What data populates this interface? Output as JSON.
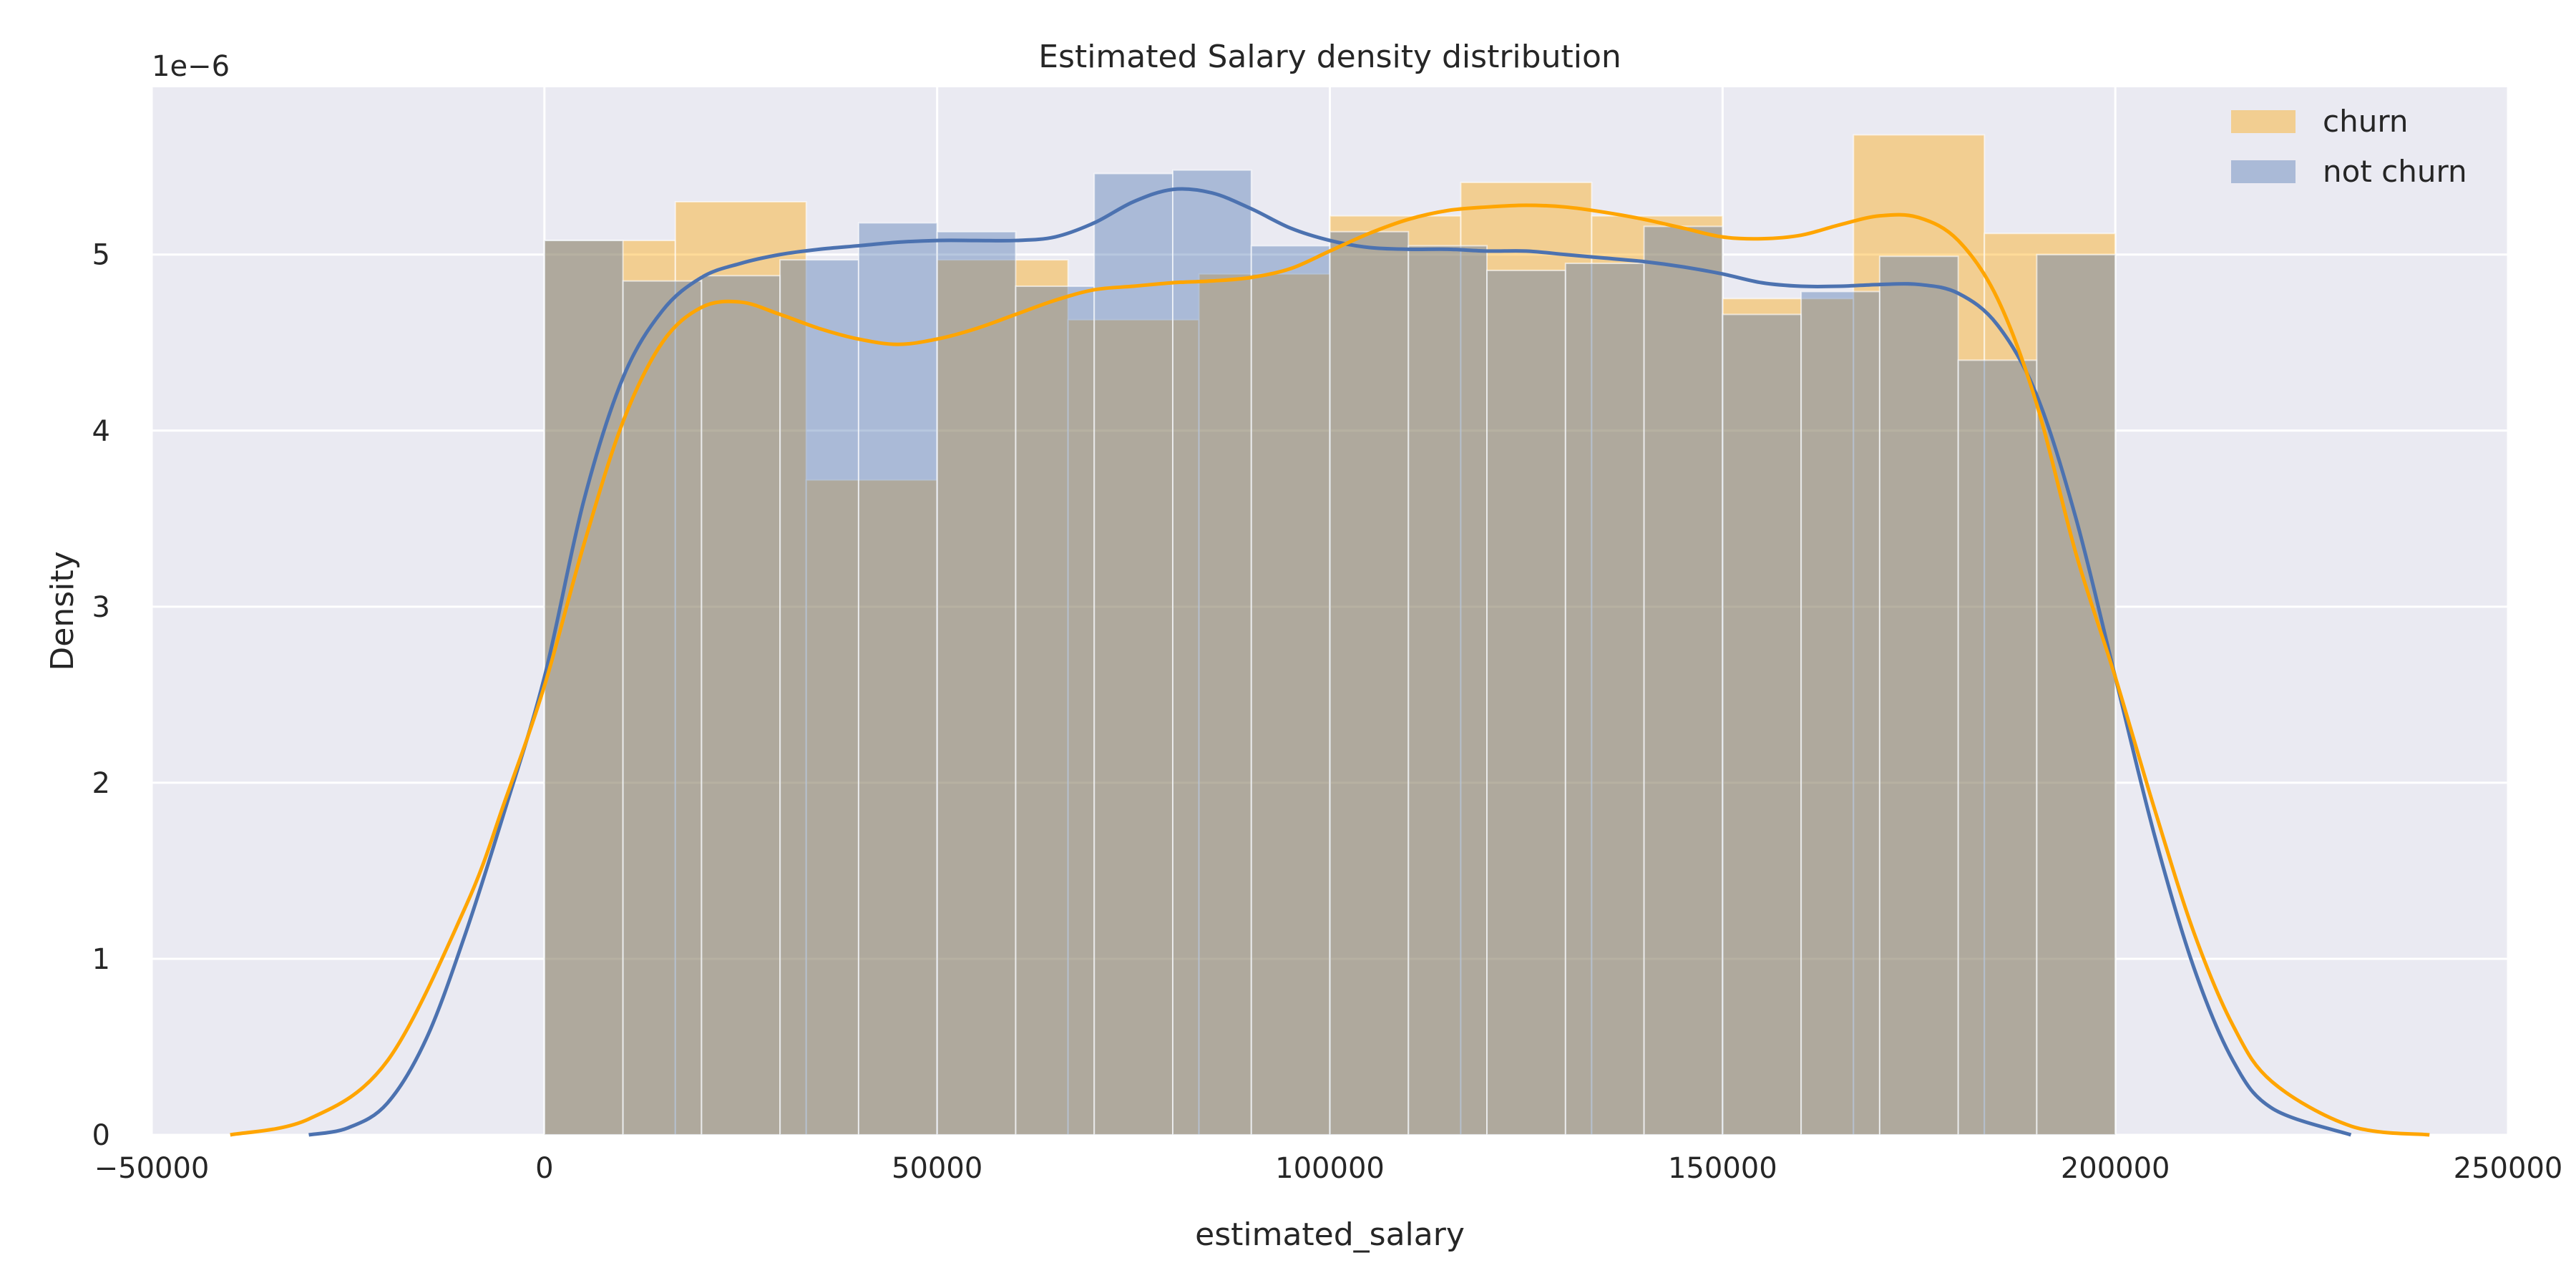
{
  "chart_data": {
    "type": "histogram-kde",
    "title": "Estimated Salary density distribution",
    "xlabel": "estimated_salary",
    "ylabel": "Density",
    "y_multiplier_label": "1e−6",
    "xlim": [
      -50000,
      250000
    ],
    "ylim": [
      0,
      5.95
    ],
    "x_ticks": [
      -50000,
      0,
      50000,
      100000,
      150000,
      200000,
      250000
    ],
    "x_tick_labels": [
      "−50000",
      "0",
      "50000",
      "100000",
      "150000",
      "200000",
      "250000"
    ],
    "y_ticks": [
      0,
      1,
      2,
      3,
      4,
      5
    ],
    "y_tick_labels": [
      "0",
      "1",
      "2",
      "3",
      "4",
      "5"
    ],
    "grid": true,
    "legend_position": "top-right",
    "series": [
      {
        "name": "churn",
        "color": "#FFA500",
        "bar_fill": "#F5D08E",
        "bin_edges": [
          0,
          16667,
          33333,
          50000,
          66667,
          83333,
          100000,
          116667,
          133333,
          150000,
          166667,
          183333,
          200000
        ],
        "densities": [
          5.08,
          5.3,
          3.72,
          4.97,
          4.63,
          4.89,
          5.22,
          5.41,
          5.22,
          4.75,
          5.68,
          5.12
        ],
        "kde_x": [
          -40000,
          -30000,
          -20000,
          -10000,
          -5000,
          0,
          5000,
          10000,
          15000,
          20000,
          25000,
          30000,
          35000,
          40000,
          45000,
          50000,
          55000,
          60000,
          65000,
          70000,
          75000,
          80000,
          85000,
          90000,
          95000,
          100000,
          105000,
          110000,
          115000,
          120000,
          125000,
          130000,
          135000,
          140000,
          145000,
          150000,
          155000,
          160000,
          165000,
          170000,
          175000,
          180000,
          185000,
          190000,
          195000,
          200000,
          205000,
          210000,
          215000,
          220000,
          230000,
          240000
        ],
        "kde_y": [
          0.0,
          0.09,
          0.42,
          1.3,
          1.9,
          2.55,
          3.35,
          4.05,
          4.5,
          4.7,
          4.73,
          4.66,
          4.58,
          4.52,
          4.49,
          4.52,
          4.58,
          4.66,
          4.74,
          4.8,
          4.82,
          4.84,
          4.85,
          4.87,
          4.92,
          5.02,
          5.12,
          5.2,
          5.25,
          5.27,
          5.28,
          5.27,
          5.24,
          5.2,
          5.15,
          5.1,
          5.09,
          5.11,
          5.17,
          5.22,
          5.21,
          5.08,
          4.75,
          4.15,
          3.3,
          2.6,
          1.85,
          1.15,
          0.62,
          0.3,
          0.05,
          0.0
        ]
      },
      {
        "name": "not churn",
        "color": "#4C72B0",
        "bar_fill": "#A8B8D8",
        "bin_edges": [
          0,
          10000,
          20000,
          30000,
          40000,
          50000,
          60000,
          70000,
          80000,
          90000,
          100000,
          110000,
          120000,
          130000,
          140000,
          150000,
          160000,
          170000,
          180000,
          190000,
          200000
        ],
        "densities": [
          5.08,
          4.85,
          4.88,
          4.97,
          5.18,
          5.13,
          4.82,
          5.46,
          5.48,
          5.05,
          5.13,
          5.05,
          4.91,
          4.95,
          5.16,
          4.66,
          4.79,
          4.99,
          4.4,
          5.0
        ],
        "kde_x": [
          -30000,
          -25000,
          -20000,
          -15000,
          -10000,
          -5000,
          0,
          5000,
          10000,
          15000,
          20000,
          25000,
          30000,
          35000,
          40000,
          45000,
          50000,
          55000,
          60000,
          65000,
          70000,
          75000,
          80000,
          85000,
          90000,
          95000,
          100000,
          105000,
          110000,
          115000,
          120000,
          125000,
          130000,
          135000,
          140000,
          145000,
          150000,
          155000,
          160000,
          165000,
          170000,
          175000,
          180000,
          185000,
          190000,
          195000,
          200000,
          205000,
          210000,
          215000,
          220000,
          230000
        ],
        "kde_y": [
          0.0,
          0.04,
          0.18,
          0.55,
          1.15,
          1.85,
          2.6,
          3.6,
          4.3,
          4.68,
          4.87,
          4.95,
          5.0,
          5.03,
          5.05,
          5.07,
          5.08,
          5.08,
          5.08,
          5.1,
          5.18,
          5.3,
          5.37,
          5.35,
          5.26,
          5.15,
          5.08,
          5.04,
          5.03,
          5.03,
          5.02,
          5.02,
          5.0,
          4.98,
          4.96,
          4.93,
          4.89,
          4.84,
          4.82,
          4.82,
          4.83,
          4.83,
          4.78,
          4.6,
          4.2,
          3.5,
          2.6,
          1.7,
          0.95,
          0.42,
          0.15,
          0.0
        ]
      }
    ],
    "overlap_color": "#B0A99C"
  }
}
